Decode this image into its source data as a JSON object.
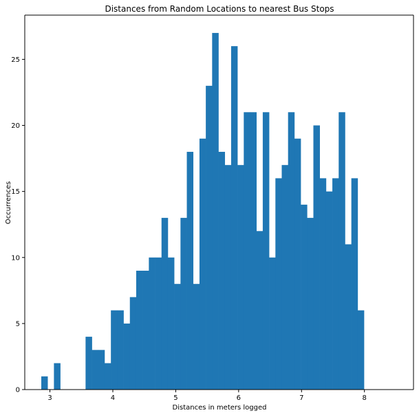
{
  "chart_data": {
    "type": "bar",
    "title": "Distances from Random Locations to nearest Bus Stops",
    "xlabel": "Distances in meters logged",
    "ylabel": "Occurrences",
    "xlim": [
      2.6,
      8.78
    ],
    "ylim": [
      0,
      28.35
    ],
    "grid": false,
    "bar_color": "#1f77b4",
    "bin_start": 2.8625,
    "bin_width": 0.1006,
    "values": [
      1,
      0,
      2,
      0,
      0,
      0,
      0,
      4,
      3,
      3,
      2,
      6,
      6,
      5,
      7,
      9,
      9,
      10,
      10,
      13,
      10,
      8,
      13,
      18,
      8,
      19,
      23,
      27,
      18,
      17,
      26,
      17,
      21,
      21,
      12,
      21,
      10,
      16,
      17,
      21,
      19,
      14,
      13,
      20,
      16,
      15,
      16,
      21,
      11,
      16,
      6
    ],
    "x_ticks": [
      "3",
      "4",
      "5",
      "6",
      "7",
      "8"
    ],
    "x_tick_values": [
      3,
      4,
      5,
      6,
      7,
      8
    ],
    "y_ticks": [
      "0",
      "5",
      "10",
      "15",
      "20",
      "25"
    ],
    "y_tick_values": [
      0,
      5,
      10,
      15,
      20,
      25
    ]
  }
}
